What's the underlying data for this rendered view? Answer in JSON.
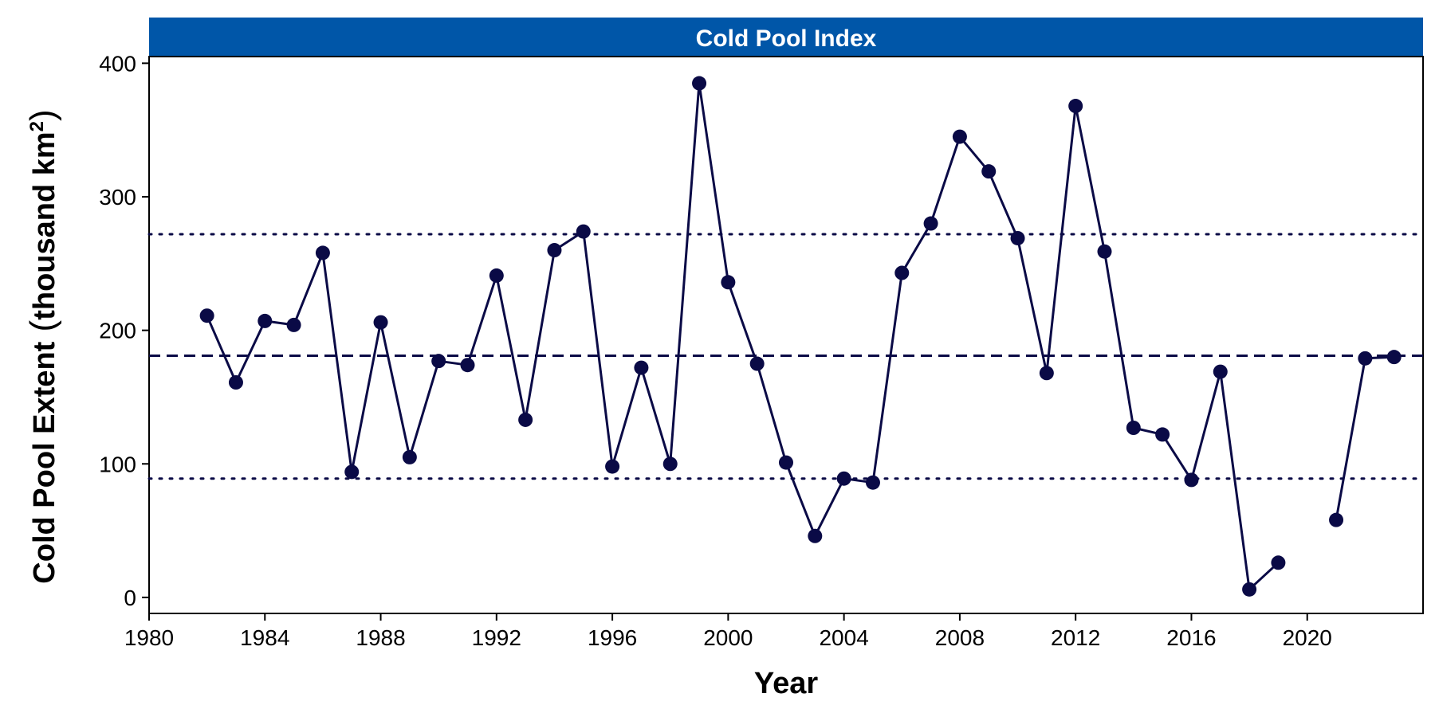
{
  "colors": {
    "strip": "#0056A8",
    "series": "#0A0A46",
    "reference": "#0A0A46",
    "axis": "#000000"
  },
  "chart_data": {
    "type": "line",
    "title": "Cold Pool Index",
    "xlabel": "Year",
    "ylabel_main": "Cold Pool Extent",
    "ylabel_units": "thousand km",
    "ylabel_superscript": "2",
    "xlim": [
      1980,
      2024
    ],
    "ylim": [
      -12,
      405
    ],
    "x_ticks": [
      1980,
      1984,
      1988,
      1992,
      1996,
      2000,
      2004,
      2008,
      2012,
      2016,
      2020
    ],
    "y_ticks": [
      0,
      100,
      200,
      300,
      400
    ],
    "grid": false,
    "legend": "none",
    "reference_lines": [
      {
        "value": 272,
        "style": "dotted"
      },
      {
        "value": 181,
        "style": "dashed"
      },
      {
        "value": 89,
        "style": "dotted"
      }
    ],
    "series": [
      {
        "x": [
          1982,
          1983,
          1984,
          1985,
          1986,
          1987,
          1988,
          1989,
          1990,
          1991,
          1992,
          1993,
          1994,
          1995,
          1996,
          1997,
          1998,
          1999,
          2000,
          2001,
          2002,
          2003,
          2004,
          2005,
          2006,
          2007,
          2008,
          2009,
          2010,
          2011,
          2012,
          2013,
          2014,
          2015,
          2016,
          2017,
          2018,
          2019,
          2020,
          2021,
          2022,
          2023
        ],
        "values": [
          211,
          161,
          207,
          204,
          258,
          94,
          206,
          105,
          177,
          174,
          241,
          133,
          260,
          274,
          98,
          172,
          100,
          385,
          236,
          175,
          101,
          46,
          89,
          86,
          243,
          280,
          345,
          319,
          269,
          168,
          368,
          259,
          127,
          122,
          88,
          169,
          6,
          26,
          null,
          58,
          179,
          180
        ]
      }
    ]
  }
}
